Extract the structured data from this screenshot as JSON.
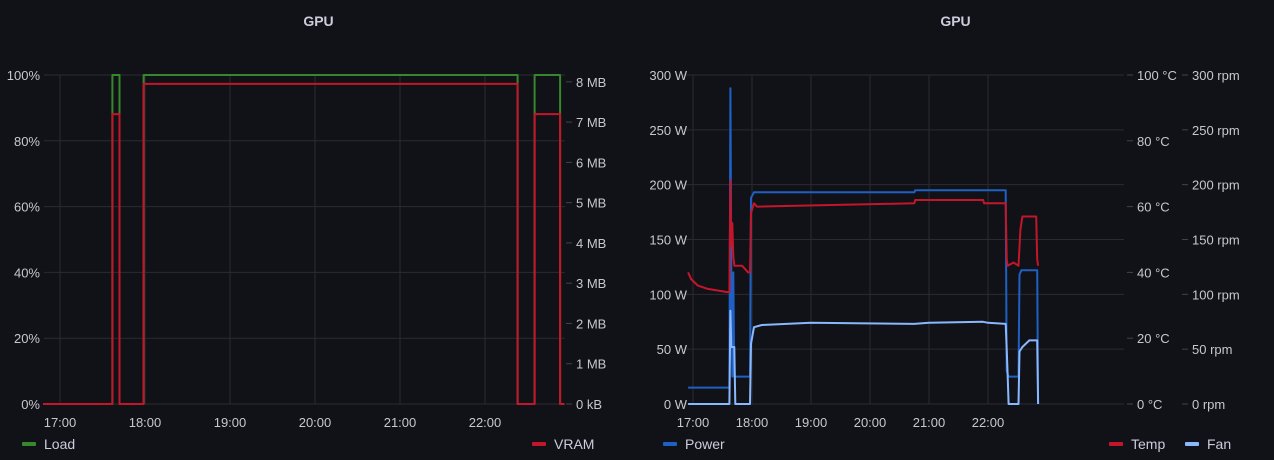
{
  "colors": {
    "load": "#37872d",
    "vram": "#c4162a",
    "power": "#1f60c4",
    "temp": "#c4162a",
    "fan": "#8ab8ff"
  },
  "chart_data": [
    {
      "type": "line",
      "title": "GPU",
      "x_ticks": [
        "17:00",
        "18:00",
        "19:00",
        "20:00",
        "21:00",
        "22:00"
      ],
      "y_left": {
        "ticks": [
          "0%",
          "20%",
          "40%",
          "60%",
          "80%",
          "100%"
        ],
        "range": [
          0,
          100
        ]
      },
      "y_right": {
        "ticks": [
          "0 kB",
          "1 MB",
          "2 MB",
          "3 MB",
          "4 MB",
          "5 MB",
          "6 MB",
          "7 MB",
          "8 MB"
        ],
        "range": [
          0,
          8.17
        ]
      },
      "legend": {
        "left": [
          "Load"
        ],
        "right": [
          "VRAM"
        ]
      },
      "grid": true,
      "series": [
        {
          "name": "Load",
          "axis": "left",
          "color_key": "load",
          "x": [
            "16:48",
            "17:37",
            "17:37",
            "17:42",
            "17:42",
            "17:59",
            "17:59",
            "22:23",
            "22:23",
            "22:35",
            "22:35",
            "22:53",
            "22:53",
            "22:56"
          ],
          "y": [
            0,
            0,
            100,
            100,
            0,
            0,
            100,
            100,
            0,
            0,
            100,
            100,
            0,
            0
          ]
        },
        {
          "name": "VRAM",
          "axis": "right",
          "color_key": "vram",
          "x": [
            "16:48",
            "17:37",
            "17:37",
            "17:42",
            "17:42",
            "17:59",
            "17:59",
            "22:23",
            "22:23",
            "22:35",
            "22:35",
            "22:53",
            "22:53",
            "22:56"
          ],
          "y": [
            0,
            0,
            7.2,
            7.2,
            0,
            0,
            7.95,
            7.95,
            0,
            0,
            7.2,
            7.2,
            0,
            0
          ]
        }
      ]
    },
    {
      "type": "line",
      "title": "GPU",
      "x_ticks": [
        "17:00",
        "18:00",
        "19:00",
        "20:00",
        "21:00",
        "22:00"
      ],
      "y_left": {
        "ticks": [
          "0 W",
          "50 W",
          "100 W",
          "150 W",
          "200 W",
          "250 W",
          "300 W"
        ],
        "range": [
          0,
          300
        ]
      },
      "y_right": {
        "ticks": [
          "0 °C",
          "20 °C",
          "40 °C",
          "60 °C",
          "80 °C",
          "100 °C"
        ],
        "range": [
          0,
          100
        ]
      },
      "y_right2": {
        "ticks": [
          "0 rpm",
          "50 rpm",
          "100 rpm",
          "150 rpm",
          "200 rpm",
          "250 rpm",
          "300 rpm"
        ],
        "range": [
          0,
          300
        ]
      },
      "legend": {
        "left": [
          "Power"
        ],
        "right": [
          "Temp",
          "Fan"
        ]
      },
      "grid": true,
      "series": [
        {
          "name": "Power",
          "axis": "left",
          "color_key": "power",
          "x": [
            "16:55",
            "17:37",
            "17:38",
            "17:39",
            "17:40",
            "17:41",
            "17:42",
            "17:58",
            "17:59",
            "18:02",
            "20:45",
            "20:46",
            "22:18",
            "22:19",
            "22:21",
            "22:31",
            "22:32",
            "22:34",
            "22:50",
            "22:51"
          ],
          "y": [
            15,
            15,
            288,
            120,
            25,
            120,
            25,
            25,
            188,
            193,
            193,
            195,
            195,
            30,
            25,
            25,
            118,
            122,
            122,
            0
          ]
        },
        {
          "name": "Temp",
          "axis": "right",
          "color_key": "temp",
          "x": [
            "16:55",
            "16:58",
            "17:05",
            "17:15",
            "17:35",
            "17:37",
            "17:38",
            "17:39",
            "17:40",
            "17:41",
            "17:42",
            "17:50",
            "17:56",
            "17:58",
            "17:59",
            "18:02",
            "18:05",
            "20:45",
            "20:46",
            "21:55",
            "21:56",
            "22:18",
            "22:19",
            "22:20",
            "22:26",
            "22:31",
            "22:33",
            "22:35",
            "22:49",
            "22:50",
            "22:51"
          ],
          "y": [
            40,
            38,
            36,
            35,
            34,
            34,
            68,
            48,
            55,
            45,
            42,
            42,
            40,
            40,
            58,
            61,
            60,
            61,
            62,
            62,
            61,
            61,
            44,
            42,
            43,
            42,
            53,
            57,
            57,
            44,
            42
          ]
        },
        {
          "name": "Fan",
          "axis": "right2",
          "color_key": "fan",
          "x": [
            "16:55",
            "17:37",
            "17:38",
            "17:39",
            "17:40",
            "17:42",
            "17:43",
            "17:58",
            "17:59",
            "18:02",
            "18:10",
            "19:00",
            "20:45",
            "21:00",
            "21:55",
            "22:00",
            "22:18",
            "22:19",
            "22:20",
            "22:21",
            "22:31",
            "22:32",
            "22:35",
            "22:42",
            "22:50",
            "22:51"
          ],
          "y": [
            0,
            0,
            85,
            52,
            52,
            52,
            0,
            0,
            55,
            70,
            72,
            74,
            73,
            74,
            75,
            74,
            73,
            50,
            25,
            0,
            0,
            48,
            52,
            58,
            58,
            0
          ]
        }
      ]
    }
  ]
}
